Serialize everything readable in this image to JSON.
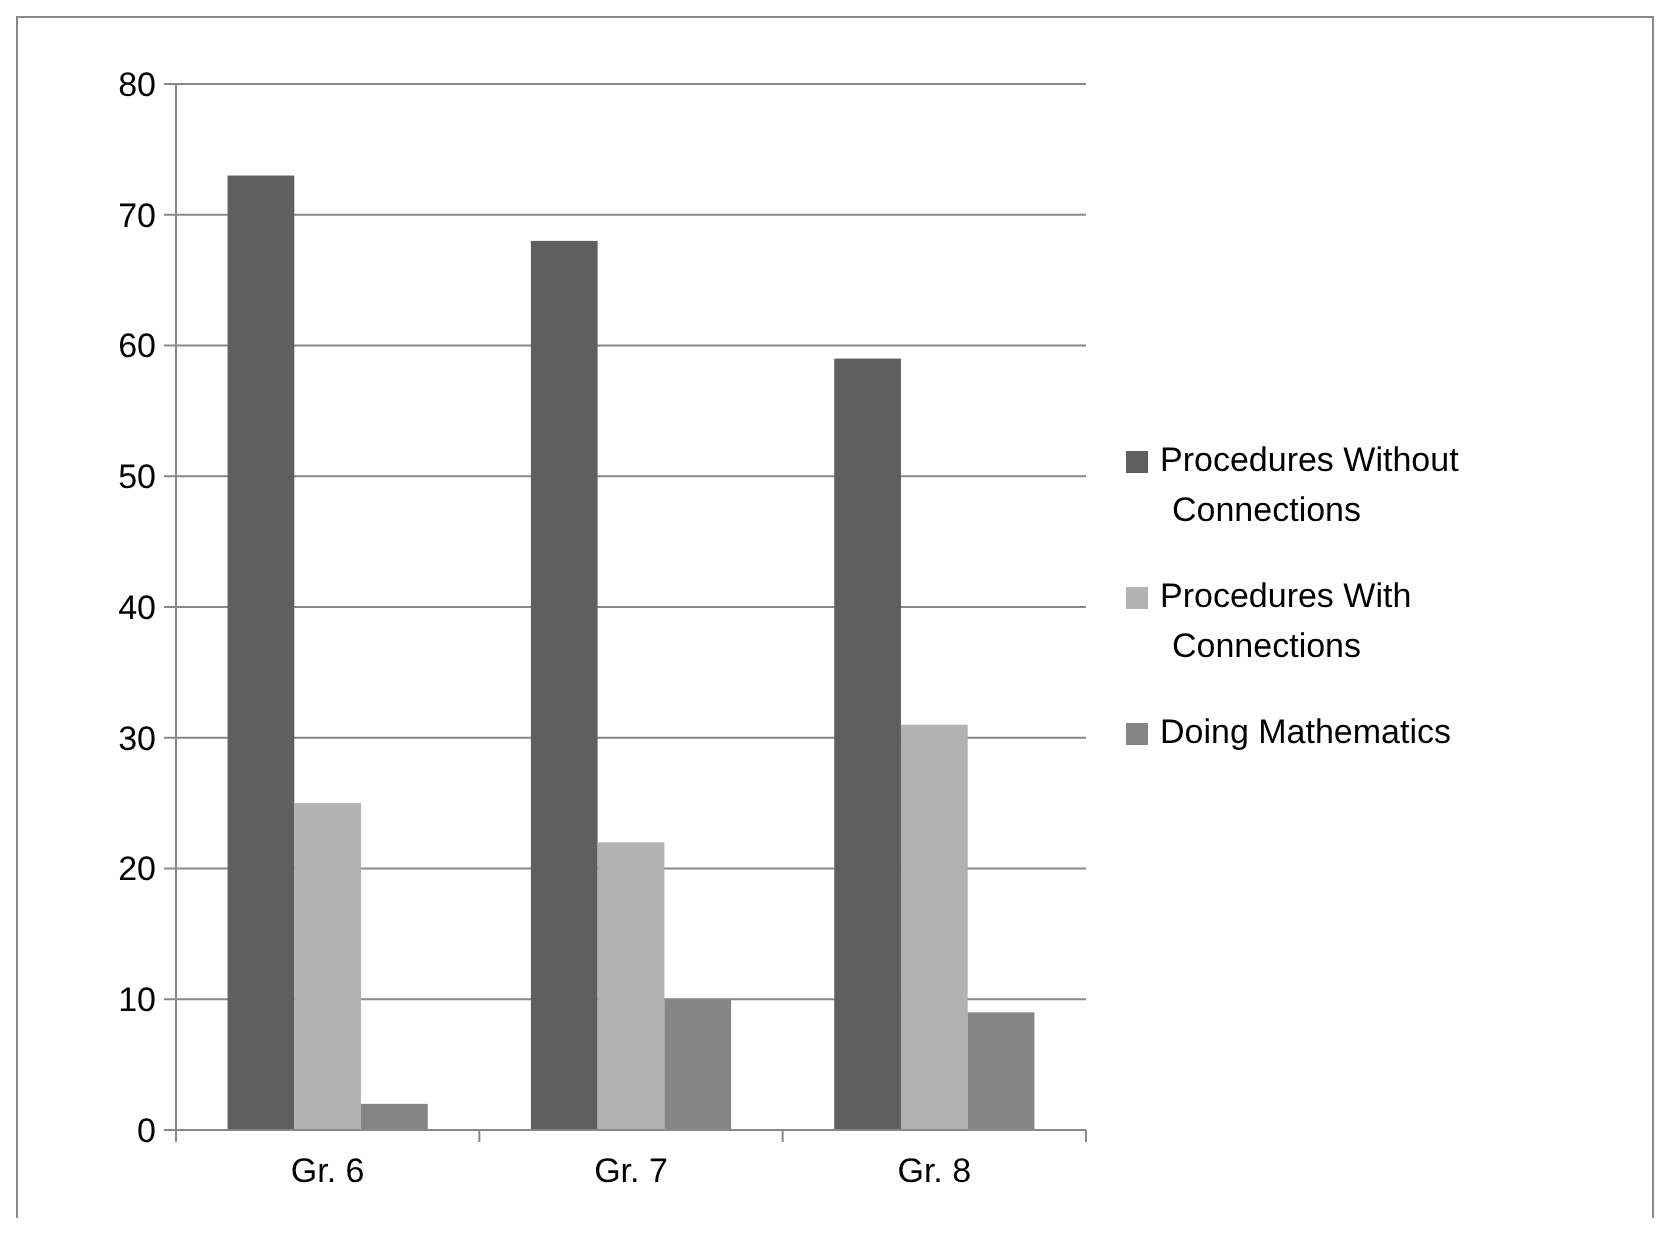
{
  "chart_data": {
    "type": "bar",
    "categories": [
      "Gr. 6",
      "Gr. 7",
      "Gr. 8"
    ],
    "series": [
      {
        "name": "Procedures Without Connections",
        "color": "#5f5f5f",
        "values": [
          73,
          68,
          59
        ]
      },
      {
        "name": "Procedures With Connections",
        "color": "#b2b2b2",
        "values": [
          25,
          22,
          31
        ]
      },
      {
        "name": "Doing Mathematics",
        "color": "#858585",
        "values": [
          2,
          10,
          9
        ]
      }
    ],
    "ylim": [
      0,
      80
    ],
    "yticks": [
      0,
      10,
      20,
      30,
      40,
      50,
      60,
      70,
      80
    ],
    "grid": "y",
    "legend": "right"
  }
}
